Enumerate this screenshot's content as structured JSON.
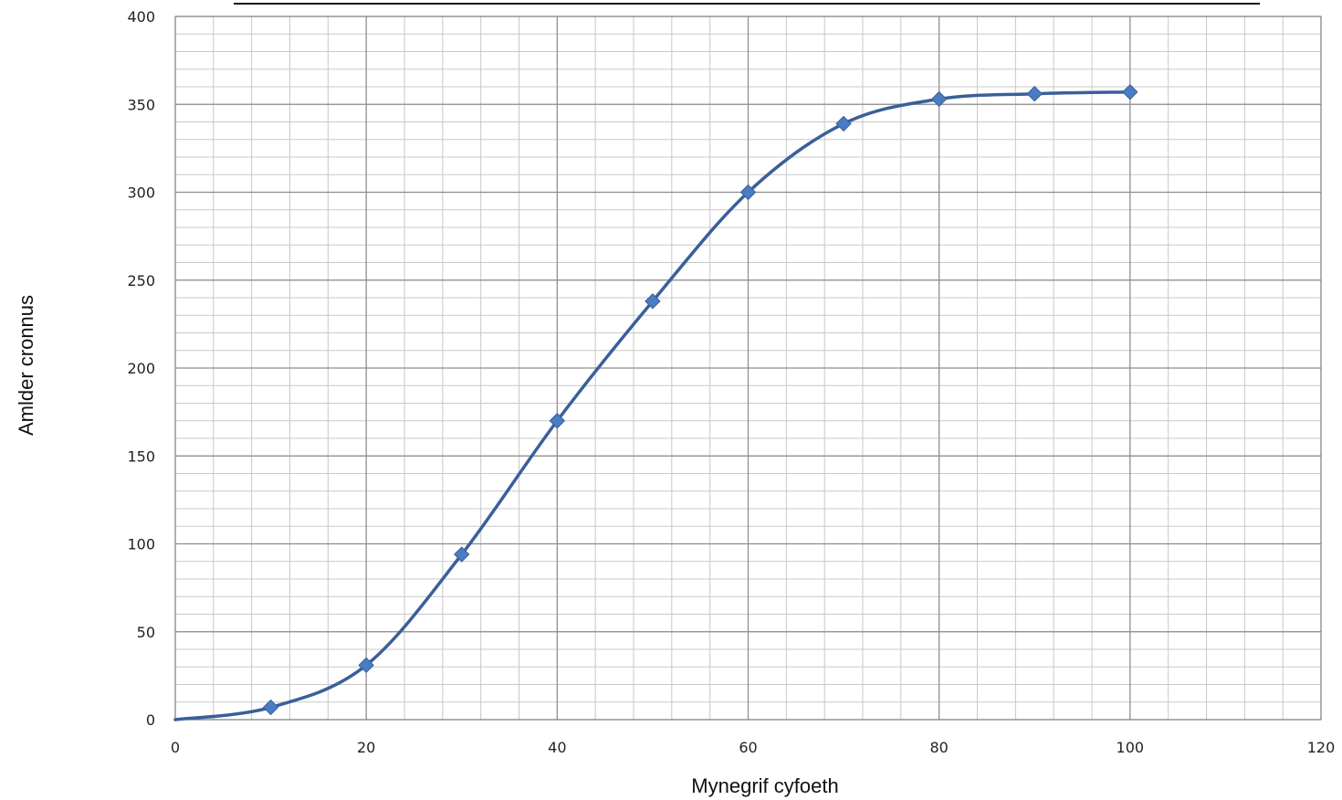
{
  "chart_data": {
    "type": "line",
    "title": "",
    "xlabel": "Mynegrif cyfoeth",
    "ylabel": "Amlder cronnus",
    "xlim": [
      0,
      120
    ],
    "ylim": [
      0,
      400
    ],
    "x_major_ticks": [
      0,
      20,
      40,
      60,
      80,
      100,
      120
    ],
    "y_major_ticks": [
      0,
      50,
      100,
      150,
      200,
      250,
      300,
      350,
      400
    ],
    "x_tick_labels": [
      "0",
      "20",
      "40",
      "60",
      "80",
      "100",
      "120"
    ],
    "y_tick_labels": [
      "0",
      "50",
      "100",
      "150",
      "200",
      "250",
      "300",
      "350",
      "400"
    ],
    "x_minor_step": 4,
    "y_minor_step": 10,
    "grid": true,
    "line_color": "#3a5f9a",
    "marker_color": "#4a7cc4",
    "grid_major_color": "#8c8c8c",
    "grid_minor_color": "#c8c8c8",
    "curve_start": [
      0,
      0
    ],
    "series": [
      {
        "x": [
          10,
          20,
          30,
          40,
          50,
          60,
          70,
          80,
          90,
          100
        ],
        "values": [
          7,
          31,
          94,
          170,
          238,
          300,
          339,
          353,
          356,
          357
        ]
      }
    ]
  }
}
